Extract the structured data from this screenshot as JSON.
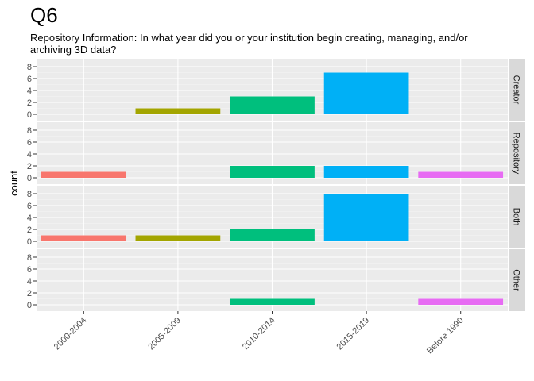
{
  "chart_data": {
    "type": "bar",
    "title": "Q6",
    "subtitle": "Repository Information: In what year did you or your institution begin creating, managing, and/or archiving 3D data?",
    "xlabel": "",
    "ylabel": "count",
    "categories": [
      "2000-2004",
      "2005-2009",
      "2010-2014",
      "2015-2019",
      "Before 1990"
    ],
    "category_colors": [
      "#F8766D",
      "#A3A500",
      "#00BF7D",
      "#00B0F6",
      "#E76BF3"
    ],
    "ylim": [
      0,
      8
    ],
    "yticks": [
      0,
      2,
      4,
      6,
      8
    ],
    "facets": [
      {
        "name": "Creator",
        "values": [
          0,
          1,
          3,
          7,
          0
        ]
      },
      {
        "name": "Repository",
        "values": [
          1,
          0,
          2,
          2,
          1
        ]
      },
      {
        "name": "Both",
        "values": [
          1,
          1,
          2,
          8,
          0
        ]
      },
      {
        "name": "Other",
        "values": [
          0,
          0,
          1,
          0,
          1
        ]
      }
    ],
    "grid": true,
    "legend": "none"
  }
}
